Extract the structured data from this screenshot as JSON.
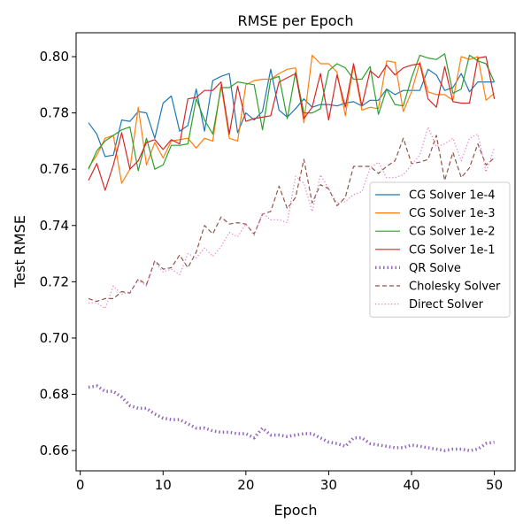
{
  "chart_data": {
    "type": "line",
    "title": "RMSE per Epoch",
    "xlabel": "Epoch",
    "ylabel": "Test RMSE",
    "xlim": [
      -0.5,
      52.5
    ],
    "ylim": [
      0.6528,
      0.8085
    ],
    "xticks": [
      0,
      10,
      20,
      30,
      40,
      50
    ],
    "xtick_labels": [
      "0",
      "10",
      "20",
      "30",
      "40",
      "50"
    ],
    "yticks": [
      0.66,
      0.68,
      0.7,
      0.72,
      0.74,
      0.76,
      0.78,
      0.8
    ],
    "ytick_labels": [
      "0.66",
      "0.68",
      "0.70",
      "0.72",
      "0.74",
      "0.76",
      "0.78",
      "0.80"
    ],
    "grid": false,
    "legend_position": "center-right",
    "x": [
      1,
      2,
      3,
      4,
      5,
      6,
      7,
      8,
      9,
      10,
      11,
      12,
      13,
      14,
      15,
      16,
      17,
      18,
      19,
      20,
      21,
      22,
      23,
      24,
      25,
      26,
      27,
      28,
      29,
      30,
      31,
      32,
      33,
      34,
      35,
      36,
      37,
      38,
      39,
      40,
      41,
      42,
      43,
      44,
      45,
      46,
      47,
      48,
      49,
      50
    ],
    "series": [
      {
        "name": "CG Solver 1e-4",
        "color": "#1f77b4",
        "style": "solid",
        "values": [
          0.7765,
          0.7725,
          0.7645,
          0.765,
          0.7775,
          0.777,
          0.7805,
          0.78,
          0.771,
          0.7835,
          0.786,
          0.7735,
          0.7755,
          0.7885,
          0.7735,
          0.7915,
          0.793,
          0.794,
          0.773,
          0.78,
          0.7775,
          0.7805,
          0.7955,
          0.781,
          0.7785,
          0.7815,
          0.785,
          0.782,
          0.783,
          0.783,
          0.7825,
          0.7835,
          0.784,
          0.7825,
          0.7845,
          0.7845,
          0.7885,
          0.7865,
          0.788,
          0.788,
          0.788,
          0.7955,
          0.7935,
          0.788,
          0.789,
          0.794,
          0.7875,
          0.791,
          0.791,
          0.791
        ]
      },
      {
        "name": "CG Solver 1e-3",
        "color": "#ff7f0e",
        "style": "solid",
        "values": [
          0.7605,
          0.765,
          0.771,
          0.772,
          0.755,
          0.76,
          0.782,
          0.7615,
          0.7695,
          0.764,
          0.77,
          0.7705,
          0.771,
          0.7675,
          0.771,
          0.77,
          0.79,
          0.771,
          0.77,
          0.79,
          0.7915,
          0.792,
          0.792,
          0.794,
          0.7955,
          0.796,
          0.7765,
          0.8005,
          0.7975,
          0.7975,
          0.7945,
          0.779,
          0.797,
          0.781,
          0.782,
          0.7815,
          0.7985,
          0.798,
          0.7805,
          0.7875,
          0.798,
          0.7875,
          0.7865,
          0.7865,
          0.7845,
          0.8,
          0.799,
          0.8,
          0.7845,
          0.787
        ]
      },
      {
        "name": "CG Solver 1e-2",
        "color": "#2ca02c",
        "style": "solid",
        "values": [
          0.76,
          0.7665,
          0.77,
          0.772,
          0.774,
          0.775,
          0.7595,
          0.771,
          0.76,
          0.7615,
          0.7685,
          0.7685,
          0.769,
          0.785,
          0.7775,
          0.7725,
          0.789,
          0.789,
          0.791,
          0.7905,
          0.79,
          0.774,
          0.792,
          0.793,
          0.778,
          0.7945,
          0.78,
          0.78,
          0.7815,
          0.795,
          0.7975,
          0.796,
          0.792,
          0.792,
          0.7965,
          0.7795,
          0.7885,
          0.783,
          0.7825,
          0.7925,
          0.8005,
          0.7995,
          0.799,
          0.801,
          0.787,
          0.7885,
          0.8005,
          0.7985,
          0.7975,
          0.791
        ]
      },
      {
        "name": "CG Solver 1e-1",
        "color": "#d62728",
        "style": "solid",
        "values": [
          0.756,
          0.762,
          0.7525,
          0.7615,
          0.773,
          0.76,
          0.763,
          0.7695,
          0.7705,
          0.767,
          0.7705,
          0.769,
          0.785,
          0.7855,
          0.788,
          0.788,
          0.791,
          0.7725,
          0.7895,
          0.777,
          0.778,
          0.7785,
          0.779,
          0.791,
          0.7925,
          0.794,
          0.778,
          0.782,
          0.794,
          0.7775,
          0.7935,
          0.782,
          0.7975,
          0.7825,
          0.795,
          0.7925,
          0.797,
          0.7935,
          0.796,
          0.797,
          0.7975,
          0.785,
          0.782,
          0.7965,
          0.784,
          0.7835,
          0.7835,
          0.7995,
          0.8,
          0.785
        ]
      },
      {
        "name": "QR Solve",
        "color": "#9467bd",
        "style": "dotted-thick",
        "values": [
          0.6825,
          0.683,
          0.681,
          0.681,
          0.679,
          0.676,
          0.675,
          0.675,
          0.673,
          0.6715,
          0.671,
          0.671,
          0.6695,
          0.668,
          0.668,
          0.667,
          0.6665,
          0.6665,
          0.666,
          0.666,
          0.6645,
          0.668,
          0.6655,
          0.6655,
          0.665,
          0.6655,
          0.666,
          0.666,
          0.6645,
          0.663,
          0.6625,
          0.6615,
          0.6645,
          0.6645,
          0.6625,
          0.662,
          0.6615,
          0.661,
          0.661,
          0.662,
          0.6615,
          0.661,
          0.6605,
          0.66,
          0.6605,
          0.6605,
          0.66,
          0.6605,
          0.6625,
          0.663
        ]
      },
      {
        "name": "Cholesky Solver",
        "color": "#8c564b",
        "style": "dashed",
        "values": [
          0.714,
          0.713,
          0.714,
          0.714,
          0.7165,
          0.716,
          0.721,
          0.719,
          0.7275,
          0.7245,
          0.725,
          0.7295,
          0.725,
          0.7305,
          0.74,
          0.737,
          0.743,
          0.7405,
          0.741,
          0.7405,
          0.737,
          0.744,
          0.745,
          0.754,
          0.746,
          0.75,
          0.7635,
          0.748,
          0.7545,
          0.753,
          0.747,
          0.75,
          0.761,
          0.761,
          0.761,
          0.7585,
          0.761,
          0.763,
          0.771,
          0.762,
          0.7625,
          0.7635,
          0.772,
          0.756,
          0.766,
          0.757,
          0.7605,
          0.769,
          0.7615,
          0.764
        ]
      },
      {
        "name": "Direct Solver",
        "color": "#e377c2",
        "style": "dotted",
        "values": [
          0.7125,
          0.7125,
          0.7105,
          0.7185,
          0.7155,
          0.7165,
          0.7205,
          0.7185,
          0.727,
          0.7235,
          0.7245,
          0.7225,
          0.73,
          0.7285,
          0.732,
          0.729,
          0.7325,
          0.7375,
          0.736,
          0.7405,
          0.7365,
          0.7445,
          0.742,
          0.742,
          0.741,
          0.7575,
          0.755,
          0.745,
          0.758,
          0.753,
          0.748,
          0.7485,
          0.751,
          0.752,
          0.7605,
          0.7625,
          0.757,
          0.757,
          0.758,
          0.7615,
          0.765,
          0.775,
          0.768,
          0.769,
          0.771,
          0.763,
          0.771,
          0.7725,
          0.759,
          0.7675
        ]
      }
    ]
  }
}
